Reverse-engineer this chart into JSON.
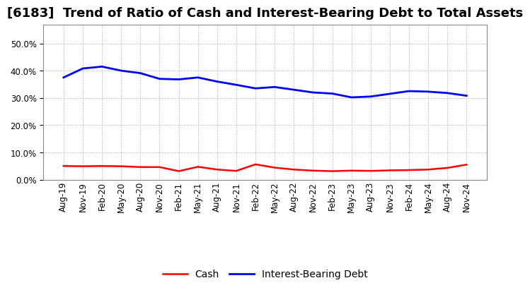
{
  "title": "[6183]  Trend of Ratio of Cash and Interest-Bearing Debt to Total Assets",
  "x_labels": [
    "Aug-19",
    "Nov-19",
    "Feb-20",
    "May-20",
    "Aug-20",
    "Nov-20",
    "Feb-21",
    "May-21",
    "Aug-21",
    "Nov-21",
    "Feb-22",
    "May-22",
    "Aug-22",
    "Nov-22",
    "Feb-23",
    "May-23",
    "Aug-23",
    "Nov-23",
    "Feb-24",
    "May-24",
    "Aug-24",
    "Nov-24"
  ],
  "cash": [
    0.05,
    0.049,
    0.05,
    0.049,
    0.046,
    0.046,
    0.031,
    0.047,
    0.037,
    0.032,
    0.056,
    0.044,
    0.037,
    0.033,
    0.031,
    0.033,
    0.032,
    0.034,
    0.035,
    0.037,
    0.043,
    0.055
  ],
  "interest_bearing_debt": [
    0.375,
    0.408,
    0.415,
    0.4,
    0.391,
    0.37,
    0.368,
    0.375,
    0.36,
    0.348,
    0.335,
    0.34,
    0.33,
    0.32,
    0.316,
    0.302,
    0.305,
    0.315,
    0.325,
    0.323,
    0.318,
    0.308
  ],
  "cash_color": "#ff0000",
  "debt_color": "#0000ff",
  "background_color": "#ffffff",
  "plot_bg_color": "#ffffff",
  "grid_color": "#aaaaaa",
  "ylim": [
    0.0,
    0.57
  ],
  "yticks": [
    0.0,
    0.1,
    0.2,
    0.3,
    0.4,
    0.5
  ],
  "legend_labels": [
    "Cash",
    "Interest-Bearing Debt"
  ],
  "title_fontsize": 13,
  "axis_fontsize": 8.5,
  "legend_fontsize": 10
}
